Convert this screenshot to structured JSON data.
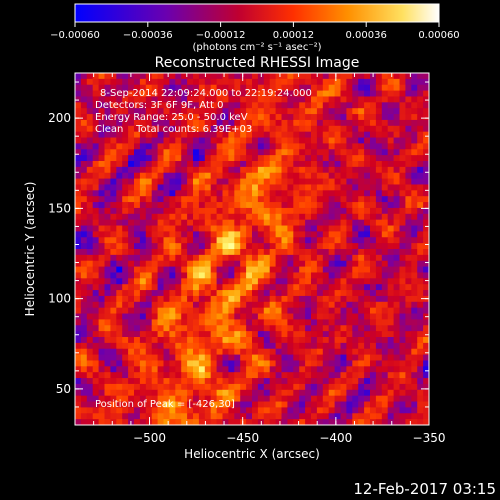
{
  "chart_data": {
    "type": "heatmap",
    "title": "Reconstructed RHESSI Image",
    "xlabel": "Heliocentric X (arcsec)",
    "ylabel": "Heliocentric Y (arcsec)",
    "xlim": [
      -540,
      -350
    ],
    "ylim": [
      30,
      225
    ],
    "x_ticks": [
      -500,
      -450,
      -400,
      -350
    ],
    "x_tick_labels": [
      "−500",
      "−450",
      "−400",
      "−350"
    ],
    "y_ticks": [
      50,
      100,
      150,
      200
    ],
    "y_tick_labels": [
      "50",
      "100",
      "150",
      "200"
    ],
    "colorbar": {
      "range": [
        -0.0006,
        0.0006
      ],
      "ticks": [
        -0.0006,
        -0.00036,
        -0.00012,
        0.00012,
        0.00036,
        0.0006
      ],
      "tick_labels": [
        "−0.00060",
        "−0.00036",
        "−0.00012",
        "0.00012",
        "0.00036",
        "0.00060"
      ],
      "units": "(photons cm⁻² s⁻¹ asec⁻²)",
      "colors": [
        "#0000ff",
        "#7a00a0",
        "#d00020",
        "#ff4000",
        "#ffa000",
        "#ffff80",
        "#ffffff"
      ]
    },
    "annotations": {
      "line1": "8-Sep-2014 22:09:24.000 to 22:19:24.000",
      "line2": "Detectors: 3F 6F 9F, Att 0",
      "line3": "Energy Range: 25.0 - 50.0 keV",
      "line4": "Clean    Total counts: 6.39E+03",
      "peak": "Position of Peak = [-426,30]"
    },
    "peak_position": [
      -426,
      30
    ],
    "grid": false
  },
  "footer_date": "12-Feb-2017 03:15"
}
